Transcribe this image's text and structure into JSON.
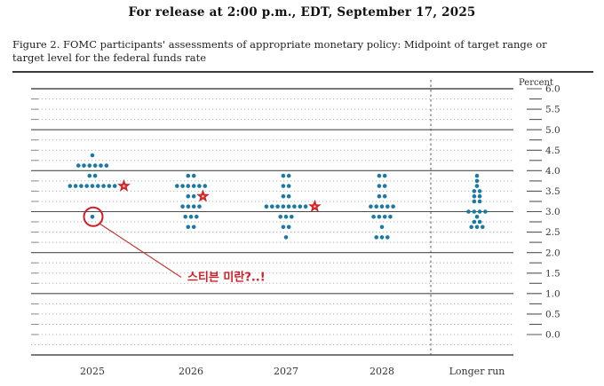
{
  "header": {
    "release_line": "For release at 2:00 p.m., EDT, September 17, 2025"
  },
  "figure": {
    "caption": "Figure 2. FOMC participants' assessments of appropriate monetary policy: Midpoint of target range or target level for the federal funds rate"
  },
  "chart_data": {
    "type": "scatter",
    "title": "FOMC dot plot: midpoint of target range or target level for the federal funds rate",
    "ylabel": "Percent",
    "percent_label": "Percent",
    "y_axis": {
      "min": 0.0,
      "max": 6.0,
      "label_step": 0.5,
      "minor_step": 0.25,
      "tick_labels": [
        "6.0",
        "5.5",
        "5.0",
        "4.5",
        "4.0",
        "3.5",
        "3.0",
        "2.5",
        "2.0",
        "1.5",
        "1.0",
        "0.5",
        "0.0"
      ],
      "solid_gridlines": [
        6.0,
        5.0,
        4.0,
        3.0,
        2.0,
        1.0
      ],
      "grid": "dotted-minor"
    },
    "columns": [
      {
        "label": "2025",
        "dots": [
          {
            "rate": 4.375,
            "count": 1
          },
          {
            "rate": 4.125,
            "count": 6
          },
          {
            "rate": 3.875,
            "count": 2
          },
          {
            "rate": 3.625,
            "count": 9
          },
          {
            "rate": 2.875,
            "count": 1
          }
        ]
      },
      {
        "label": "2026",
        "dots": [
          {
            "rate": 3.875,
            "count": 2
          },
          {
            "rate": 3.625,
            "count": 6
          },
          {
            "rate": 3.375,
            "count": 2
          },
          {
            "rate": 3.125,
            "count": 4
          },
          {
            "rate": 2.875,
            "count": 3
          },
          {
            "rate": 2.625,
            "count": 2
          }
        ]
      },
      {
        "label": "2027",
        "dots": [
          {
            "rate": 3.875,
            "count": 2
          },
          {
            "rate": 3.625,
            "count": 2
          },
          {
            "rate": 3.375,
            "count": 2
          },
          {
            "rate": 3.125,
            "count": 8
          },
          {
            "rate": 2.875,
            "count": 3
          },
          {
            "rate": 2.625,
            "count": 2
          },
          {
            "rate": 2.375,
            "count": 1
          }
        ]
      },
      {
        "label": "2028",
        "dots": [
          {
            "rate": 3.875,
            "count": 2
          },
          {
            "rate": 3.625,
            "count": 2
          },
          {
            "rate": 3.375,
            "count": 2
          },
          {
            "rate": 3.125,
            "count": 5
          },
          {
            "rate": 2.875,
            "count": 4
          },
          {
            "rate": 2.625,
            "count": 1
          },
          {
            "rate": 2.375,
            "count": 3
          }
        ]
      },
      {
        "label": "Longer run",
        "dots": [
          {
            "rate": 3.875,
            "count": 1
          },
          {
            "rate": 3.75,
            "count": 1
          },
          {
            "rate": 3.625,
            "count": 1
          },
          {
            "rate": 3.5,
            "count": 2
          },
          {
            "rate": 3.375,
            "count": 2
          },
          {
            "rate": 3.25,
            "count": 2
          },
          {
            "rate": 3.0,
            "count": 4
          },
          {
            "rate": 2.875,
            "count": 1
          },
          {
            "rate": 2.75,
            "count": 2
          },
          {
            "rate": 2.625,
            "count": 3
          }
        ]
      }
    ],
    "annotations": {
      "stars": [
        {
          "column": "2025",
          "rate": 3.625
        },
        {
          "column": "2026",
          "rate": 3.375
        },
        {
          "column": "2027",
          "rate": 3.125
        }
      ],
      "circled_dot": {
        "column": "2025",
        "rate": 2.875
      },
      "callout_text": "스티븐 미란?..!"
    },
    "legend_position": "none",
    "colors": {
      "dot": "#1b7aa4",
      "annotation_red": "#cc2027",
      "star_red": "#e02828",
      "grid_major": "#4d4d4d",
      "grid_minor": "#b0b0b0",
      "axis_text": "#333333"
    }
  }
}
